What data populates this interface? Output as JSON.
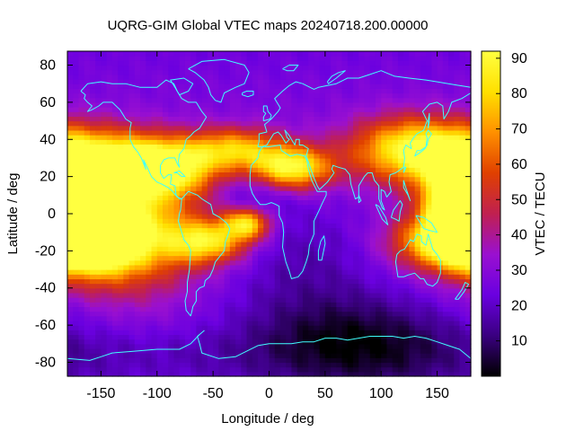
{
  "chart_data": {
    "type": "heatmap",
    "title": "UQRG-GIM Global VTEC maps 20240718.200.00000",
    "xlabel": "Longitude / deg",
    "ylabel": "Latitude / deg",
    "colorbar_label": "VTEC / TECU",
    "xlim": [
      -180,
      180
    ],
    "ylim": [
      -87.5,
      87.5
    ],
    "x_ticks": [
      -150,
      -100,
      -50,
      0,
      50,
      100,
      150
    ],
    "y_ticks": [
      -80,
      -60,
      -40,
      -20,
      0,
      20,
      40,
      60,
      80
    ],
    "colorbar_range": [
      0,
      92
    ],
    "colorbar_ticks": [
      10,
      20,
      30,
      40,
      50,
      60,
      70,
      80,
      90
    ],
    "colormap": [
      "#000000",
      "#3a0080",
      "#6a00e0",
      "#9a10d0",
      "#c02050",
      "#e04000",
      "#ff9000",
      "#ffe000",
      "#ffff40"
    ],
    "coastline_color": "#40ffff",
    "grid": false,
    "features": [
      {
        "lon": -160,
        "lat": -12,
        "value": 90,
        "slon": 28,
        "slat": 12
      },
      {
        "lon": -130,
        "lat": -8,
        "value": 55,
        "slon": 45,
        "slat": 22
      },
      {
        "lon": -150,
        "lat": 28,
        "value": 60,
        "slon": 45,
        "slat": 12
      },
      {
        "lon": -90,
        "lat": 25,
        "value": 50,
        "slon": 30,
        "slat": 10
      },
      {
        "lon": -30,
        "lat": 35,
        "value": 45,
        "slon": 30,
        "slat": 8
      },
      {
        "lon": 20,
        "lat": 25,
        "value": 62,
        "slon": 25,
        "slat": 8
      },
      {
        "lon": -20,
        "lat": -5,
        "value": 55,
        "slon": 15,
        "slat": 6
      },
      {
        "lon": -55,
        "lat": -15,
        "value": 50,
        "slon": 25,
        "slat": 8
      },
      {
        "lon": 130,
        "lat": 35,
        "value": 60,
        "slon": 40,
        "slat": 12
      },
      {
        "lon": 170,
        "lat": 5,
        "value": 80,
        "slon": 20,
        "slat": 15
      },
      {
        "lon": 150,
        "lat": -15,
        "value": 45,
        "slon": 30,
        "slat": 10
      },
      {
        "lon": 30,
        "lat": -25,
        "value": -12,
        "slon": 50,
        "slat": 25
      },
      {
        "lon": -15,
        "lat": 10,
        "value": -10,
        "slon": 25,
        "slat": 12
      },
      {
        "lon": 80,
        "lat": -70,
        "value": -25,
        "slon": 70,
        "slat": 18
      },
      {
        "lon": -100,
        "lat": -75,
        "value": -6,
        "slon": 80,
        "slat": 10
      }
    ]
  }
}
